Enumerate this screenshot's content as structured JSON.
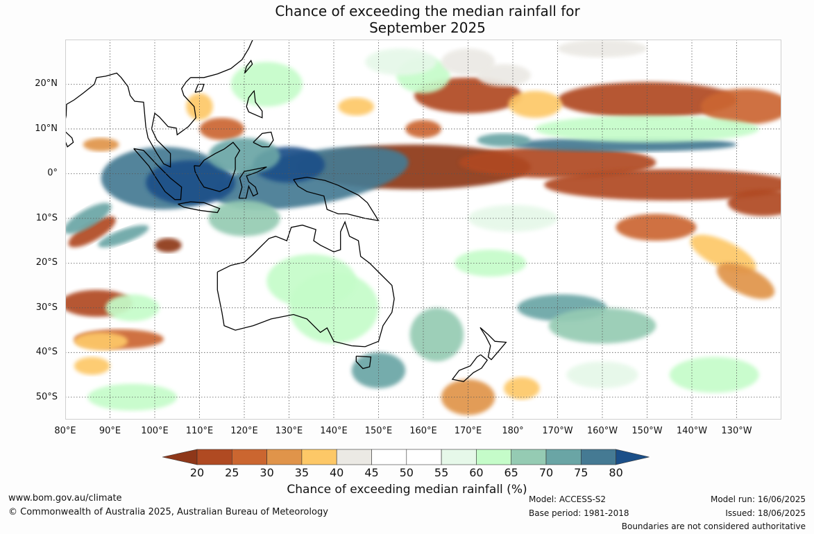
{
  "title": {
    "line1": "Chance of exceeding the median rainfall for",
    "line2": "September 2025"
  },
  "map": {
    "lat_labels": [
      "20°N",
      "10°N",
      "0°",
      "10°S",
      "20°S",
      "30°S",
      "40°S",
      "50°S"
    ],
    "lon_labels": [
      "80°E",
      "90°E",
      "100°E",
      "110°E",
      "120°E",
      "130°E",
      "140°E",
      "150°E",
      "160°E",
      "170°E",
      "180°",
      "170°W",
      "160°W",
      "150°W",
      "140°W",
      "130°W"
    ],
    "lat_range": [
      -55,
      30
    ],
    "lon_range": [
      80,
      240
    ],
    "gridlines": true
  },
  "colorbar": {
    "ticks": [
      "20",
      "25",
      "30",
      "35",
      "40",
      "45",
      "50",
      "55",
      "60",
      "65",
      "70",
      "75",
      "80"
    ],
    "colors": [
      "#8e3719",
      "#b04a22",
      "#cb6630",
      "#e0944a",
      "#fdc867",
      "#ebe9e4",
      "#ffffff",
      "#ffffff",
      "#e6f8e9",
      "#c5fcc9",
      "#95cbb3",
      "#6aa5a5",
      "#457a93",
      "#1b4f88"
    ],
    "label": "Chance of exceeding median rainfall (%)"
  },
  "footer": {
    "website": "www.bom.gov.au/climate",
    "copyright": "© Commonwealth of Australia 2025, Australian Bureau of Meteorology",
    "model": "Model: ACCESS-S2",
    "base_period": "Base period: 1981-2018",
    "model_run": "Model run: 16/06/2025",
    "issued": "Issued: 18/06/2025",
    "disclaimer": "Boundaries are not considered authoritative"
  }
}
